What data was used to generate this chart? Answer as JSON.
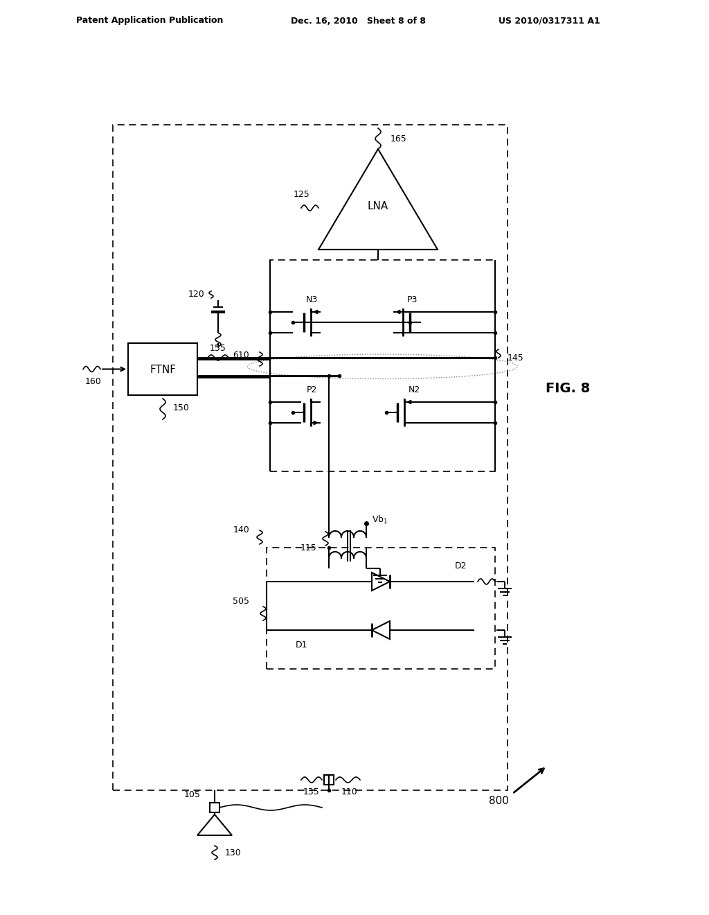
{
  "title_left": "Patent Application Publication",
  "title_mid": "Dec. 16, 2010   Sheet 8 of 8",
  "title_right": "US 2010/0317311 A1",
  "fig_label": "FIG. 8",
  "fig_number": "800",
  "bg": "#ffffff",
  "lc": "#000000"
}
